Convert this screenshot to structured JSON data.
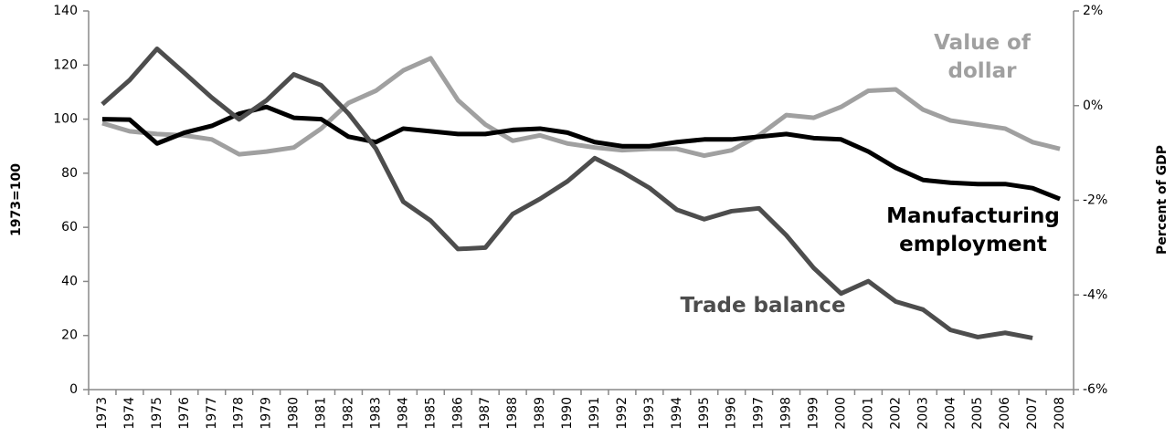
{
  "chart_data": {
    "type": "line",
    "categories": [
      "1973",
      "1974",
      "1975",
      "1976",
      "1977",
      "1978",
      "1979",
      "1980",
      "1981",
      "1982",
      "1983",
      "1984",
      "1985",
      "1986",
      "1987",
      "1988",
      "1989",
      "1990",
      "1991",
      "1992",
      "1993",
      "1994",
      "1995",
      "1996",
      "1997",
      "1998",
      "1999",
      "2000",
      "2001",
      "2002",
      "2003",
      "2004",
      "2005",
      "2006",
      "2007",
      "2008"
    ],
    "ylabel": "1973=100",
    "y2label": "Percent of GDP",
    "ylim": [
      0,
      140
    ],
    "yticks": [
      0,
      20,
      40,
      60,
      80,
      100,
      120,
      140
    ],
    "y2lim": [
      -6,
      2
    ],
    "y2ticks": [
      {
        "value": -6,
        "label": "-6%"
      },
      {
        "value": -4,
        "label": "-4%"
      },
      {
        "value": -2,
        "label": "-2%"
      },
      {
        "value": 0,
        "label": "0%"
      },
      {
        "value": 2,
        "label": "2%"
      }
    ],
    "grid": false,
    "series": [
      {
        "name": "Value of dollar",
        "color": "#a0a0a0",
        "axis": "y",
        "values": [
          98.5,
          95.5,
          94.5,
          94,
          92.5,
          87,
          88,
          89.5,
          96.5,
          106,
          110.5,
          118,
          122.5,
          107,
          98,
          92,
          94,
          91,
          89.5,
          88.5,
          89,
          89,
          86.5,
          88.5,
          94,
          101.5,
          100.5,
          104.5,
          110.5,
          111,
          103.5,
          99.5,
          98,
          96.5,
          91.5,
          89
        ]
      },
      {
        "name": "Manufacturing employment",
        "color": "#000000",
        "axis": "y",
        "values": [
          100,
          99.8,
          91,
          95,
          97.5,
          102,
          104.5,
          100.5,
          100,
          93.5,
          91.5,
          96.5,
          95.5,
          94.5,
          94.5,
          96,
          96.5,
          95,
          91.5,
          90,
          90,
          91.5,
          92.5,
          92.5,
          93.5,
          94.5,
          93,
          92.5,
          88,
          82,
          77.5,
          76.5,
          76,
          76,
          74.5,
          70.5
        ]
      },
      {
        "name": "Trade balance",
        "color": "#4d4d4d",
        "axis": "y2",
        "values": [
          0.03,
          0.54,
          1.2,
          0.69,
          0.17,
          -0.29,
          0.11,
          0.66,
          0.43,
          -0.17,
          -0.91,
          -2.03,
          -2.43,
          -3.03,
          -3,
          -2.29,
          -1.97,
          -1.6,
          -1.11,
          -1.4,
          -1.74,
          -2.2,
          -2.4,
          -2.23,
          -2.17,
          -2.74,
          -3.43,
          -3.97,
          -3.71,
          -4.14,
          -4.31,
          -4.74,
          -4.89,
          -4.8,
          -4.91,
          null
        ]
      }
    ]
  }
}
